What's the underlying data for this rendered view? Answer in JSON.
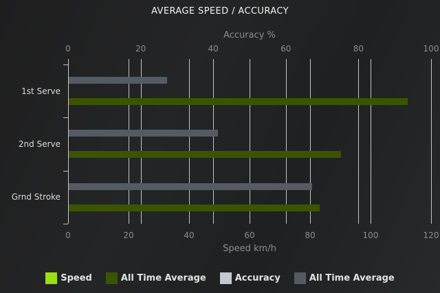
{
  "page": {
    "title": "AVERAGE SPEED / ACCURACY"
  },
  "chart_data": {
    "type": "bar",
    "orientation": "horizontal",
    "title": "AVERAGE SPEED / ACCURACY",
    "categories": [
      "1st Serve",
      "2nd Serve",
      "Grnd Stroke"
    ],
    "axes": {
      "top": {
        "label": "Accuracy %",
        "min": 0,
        "max": 100,
        "ticks": [
          0,
          20,
          40,
          60,
          80,
          100
        ]
      },
      "bottom": {
        "label": "Speed km/h",
        "min": 0,
        "max": 120,
        "ticks": [
          0,
          20,
          40,
          60,
          80,
          100,
          120
        ]
      }
    },
    "series": [
      {
        "name": "Speed",
        "axis": "bottom",
        "color": "#9be011",
        "values": [
          0,
          0,
          0
        ]
      },
      {
        "name": "All Time Average",
        "axis": "bottom",
        "color": "#3a5502",
        "values": [
          112,
          90,
          83
        ]
      },
      {
        "name": "Accuracy",
        "axis": "top",
        "color": "#c3c9d0",
        "values": [
          0,
          0,
          0
        ]
      },
      {
        "name": "All Time Average",
        "axis": "top",
        "color": "#545b64",
        "values": [
          27,
          41,
          67
        ]
      }
    ],
    "grid": true,
    "legend_position": "bottom",
    "colors": {
      "background": "#232425",
      "gridline": "#c6c6c6",
      "title_text": "#f2f2f2",
      "axis_text": "#8d8d8d",
      "category_text": "#d9d9d9",
      "legend_text": "#e2e2e2"
    }
  }
}
